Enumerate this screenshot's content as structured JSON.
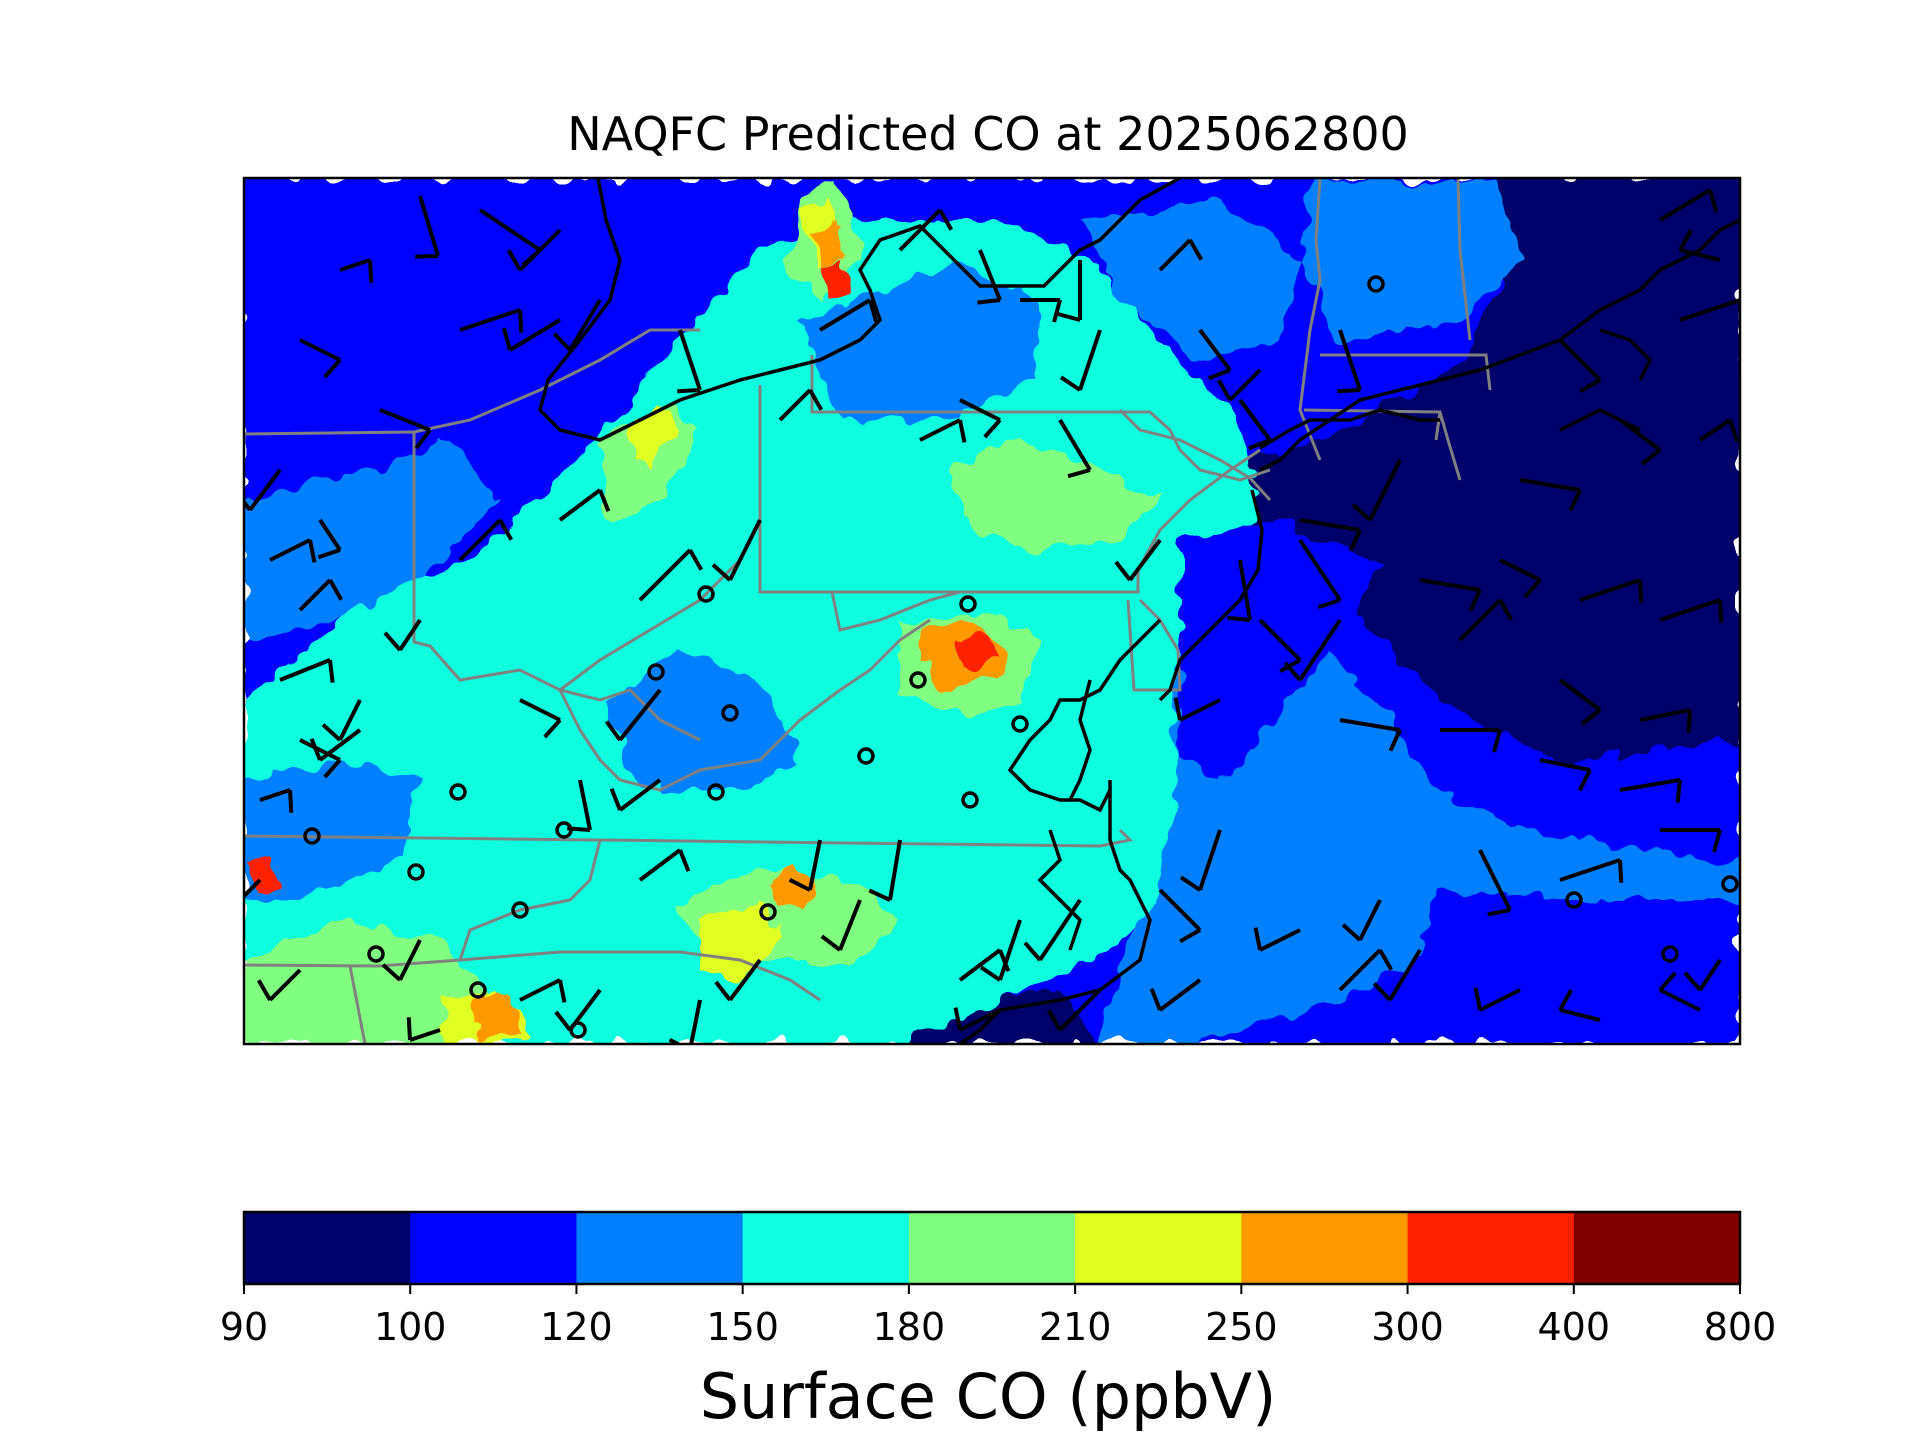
{
  "figure": {
    "title": "NAQFC Predicted CO at 2025062800"
  },
  "colorbar": {
    "label": "Surface CO (ppbV)",
    "ticks": [
      "90",
      "100",
      "120",
      "150",
      "180",
      "210",
      "250",
      "300",
      "400",
      "800"
    ],
    "colors": [
      "#00006b",
      "#0000ff",
      "#0080ff",
      "#10ffe0",
      "#80ff80",
      "#e0ff20",
      "#ff9900",
      "#ff2200",
      "#800000"
    ]
  },
  "map": {
    "background_color": "#0000ff",
    "ocean_low_color": "#00006b",
    "state_border_color": "#808080",
    "coastline_color": "#000000",
    "wind_barb_color": "#000000",
    "station_marker": "open-circle"
  }
}
